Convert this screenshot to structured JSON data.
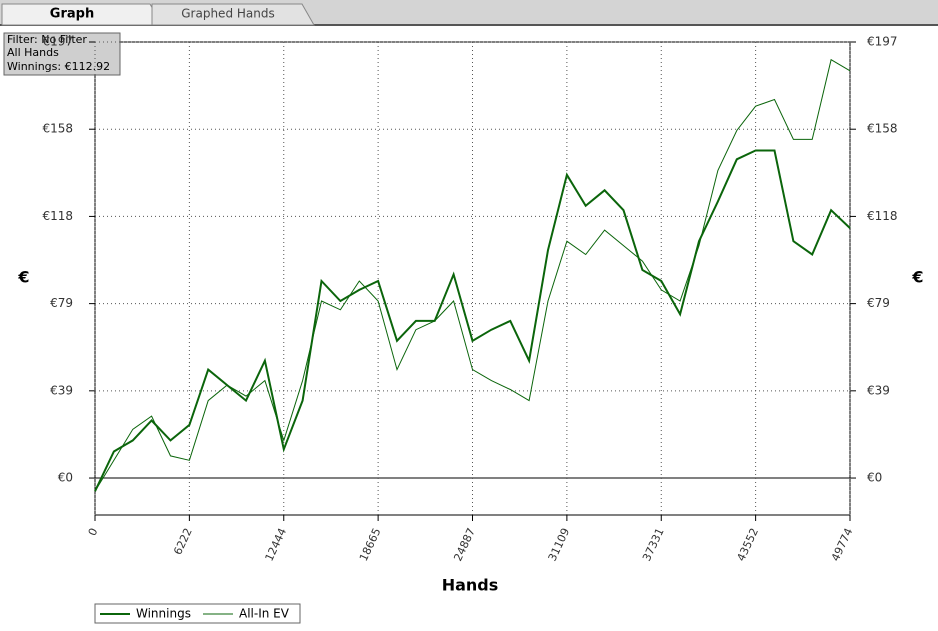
{
  "tabs": [
    "Graph",
    "Graphed Hands"
  ],
  "filter_box": {
    "lines": [
      "Filter: No Filter",
      "All Hands",
      "Winnings: €112.92"
    ]
  },
  "chart_data": {
    "type": "line",
    "x_label": "Hands",
    "y_label": "€",
    "y2_label": "€",
    "x": [
      0,
      1244,
      2489,
      3733,
      4977,
      6222,
      7466,
      8710,
      9955,
      11199,
      12444,
      13688,
      14932,
      16177,
      17421,
      18665,
      19910,
      21154,
      22398,
      23643,
      24887,
      26131,
      27376,
      28620,
      29864,
      31109,
      32353,
      33597,
      34842,
      36086,
      37331,
      38575,
      39819,
      41064,
      42308,
      43552,
      44797,
      46041,
      47285,
      48530,
      49774
    ],
    "series": [
      {
        "name": "Winnings",
        "color": "#0b650b",
        "values": [
          -6,
          12,
          17,
          26,
          17,
          24,
          49,
          42,
          35,
          53,
          13,
          35,
          89,
          80,
          85,
          89,
          62,
          71,
          71,
          92,
          62,
          67,
          71,
          53,
          103,
          137,
          123,
          130,
          121,
          94,
          89,
          74,
          107,
          125,
          144,
          148,
          148,
          107,
          101,
          121,
          112.92
        ]
      },
      {
        "name": "All-In EV",
        "color": "#0b650b",
        "values": [
          -6,
          8,
          22,
          28,
          10,
          8,
          35,
          42,
          37,
          44,
          17,
          44,
          80,
          76,
          89,
          80,
          49,
          67,
          71,
          80,
          49,
          44,
          40,
          35,
          80,
          107,
          101,
          112,
          105,
          98,
          85,
          80,
          105,
          139,
          157,
          168,
          171,
          153,
          153,
          189,
          184
        ]
      }
    ],
    "xlim": [
      0,
      49774
    ],
    "xticks": [
      0,
      6222,
      12444,
      18665,
      24887,
      31109,
      37331,
      43552,
      49774
    ],
    "ylim": [
      -16.7,
      197
    ],
    "yticks": [
      {
        "value": 0,
        "label": "€0"
      },
      {
        "value": 39.4,
        "label": "€39"
      },
      {
        "value": 78.8,
        "label": "€79"
      },
      {
        "value": 118.2,
        "label": "€118"
      },
      {
        "value": 157.6,
        "label": "€158"
      },
      {
        "value": 197,
        "label": "€197"
      }
    ],
    "grid": true
  }
}
